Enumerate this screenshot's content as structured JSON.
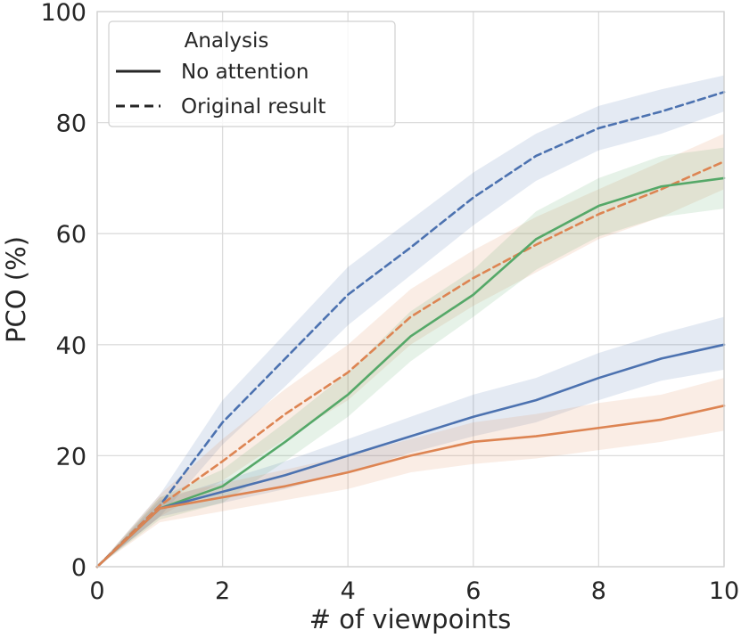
{
  "chart_data": {
    "type": "line",
    "xlabel": "# of viewpoints",
    "ylabel": "PCO (%)",
    "xlim": [
      0,
      10
    ],
    "ylim": [
      0,
      100
    ],
    "x_ticks": [
      "0",
      "2",
      "4",
      "6",
      "8",
      "10"
    ],
    "y_ticks": [
      "0",
      "20",
      "40",
      "60",
      "80",
      "100"
    ],
    "grid": true,
    "legend": {
      "placement": "top-left",
      "title": "Analysis",
      "entries": [
        {
          "label": "No attention",
          "style": "solid"
        },
        {
          "label": "Original result",
          "style": "dashed"
        }
      ]
    },
    "series": [
      {
        "color": "#4c72b0",
        "style": "dashed",
        "x": [
          0,
          1,
          2,
          3,
          4,
          5,
          6,
          7,
          8,
          9,
          10
        ],
        "y": [
          0,
          11,
          26,
          37.5,
          49,
          57.5,
          66.5,
          74,
          79,
          82,
          85.5
        ],
        "lower": [
          0,
          9,
          22,
          32.5,
          43.5,
          52.5,
          61.5,
          69.5,
          75,
          78,
          82
        ],
        "upper": [
          0,
          13,
          30,
          42,
          54,
          62.5,
          71,
          78,
          83,
          86,
          88.5
        ]
      },
      {
        "color": "#dd8452",
        "style": "dashed",
        "x": [
          0,
          1,
          2,
          3,
          4,
          5,
          6,
          7,
          8,
          9,
          10
        ],
        "y": [
          0,
          11,
          19,
          27.5,
          35,
          45,
          52,
          58,
          63.5,
          68,
          73
        ],
        "lower": [
          0,
          9,
          15.5,
          23,
          30,
          40,
          47,
          53,
          59,
          63,
          68
        ],
        "upper": [
          0,
          13,
          23,
          32,
          40,
          50,
          57,
          63,
          68,
          73,
          78
        ]
      },
      {
        "color": "#55a868",
        "style": "solid",
        "x": [
          0,
          1,
          2,
          3,
          4,
          5,
          6,
          7,
          8,
          9,
          10
        ],
        "y": [
          0,
          10.5,
          14.5,
          22.5,
          31,
          41.5,
          49,
          59,
          65,
          68.5,
          70
        ],
        "lower": [
          0,
          8.5,
          11.5,
          19,
          27,
          37,
          45,
          53.5,
          59.5,
          63,
          64.5
        ],
        "upper": [
          0,
          12.5,
          17.5,
          26,
          35,
          46,
          53.5,
          64,
          70,
          74,
          75.5
        ]
      },
      {
        "color": "#4c72b0",
        "style": "solid",
        "x": [
          0,
          1,
          2,
          3,
          4,
          5,
          6,
          7,
          8,
          9,
          10
        ],
        "y": [
          0,
          10.5,
          13.5,
          16.5,
          20,
          23.5,
          27,
          30,
          34,
          37.5,
          40
        ],
        "lower": [
          0,
          9,
          11.5,
          14,
          17,
          20.5,
          23.5,
          26,
          30,
          33.5,
          35.5
        ],
        "upper": [
          0,
          12,
          15.5,
          19,
          23,
          27,
          31,
          34,
          38.5,
          42,
          45
        ]
      },
      {
        "color": "#dd8452",
        "style": "solid",
        "x": [
          0,
          1,
          2,
          3,
          4,
          5,
          6,
          7,
          8,
          9,
          10
        ],
        "y": [
          0,
          10.5,
          12.5,
          14.5,
          17,
          20,
          22.5,
          23.5,
          25,
          26.5,
          29
        ],
        "lower": [
          0,
          8,
          10,
          12,
          14,
          17,
          18.5,
          19.5,
          21,
          22.5,
          24.5
        ],
        "upper": [
          0,
          12.5,
          15,
          17.5,
          20,
          23,
          26,
          27.5,
          29.5,
          31,
          34
        ]
      }
    ]
  }
}
